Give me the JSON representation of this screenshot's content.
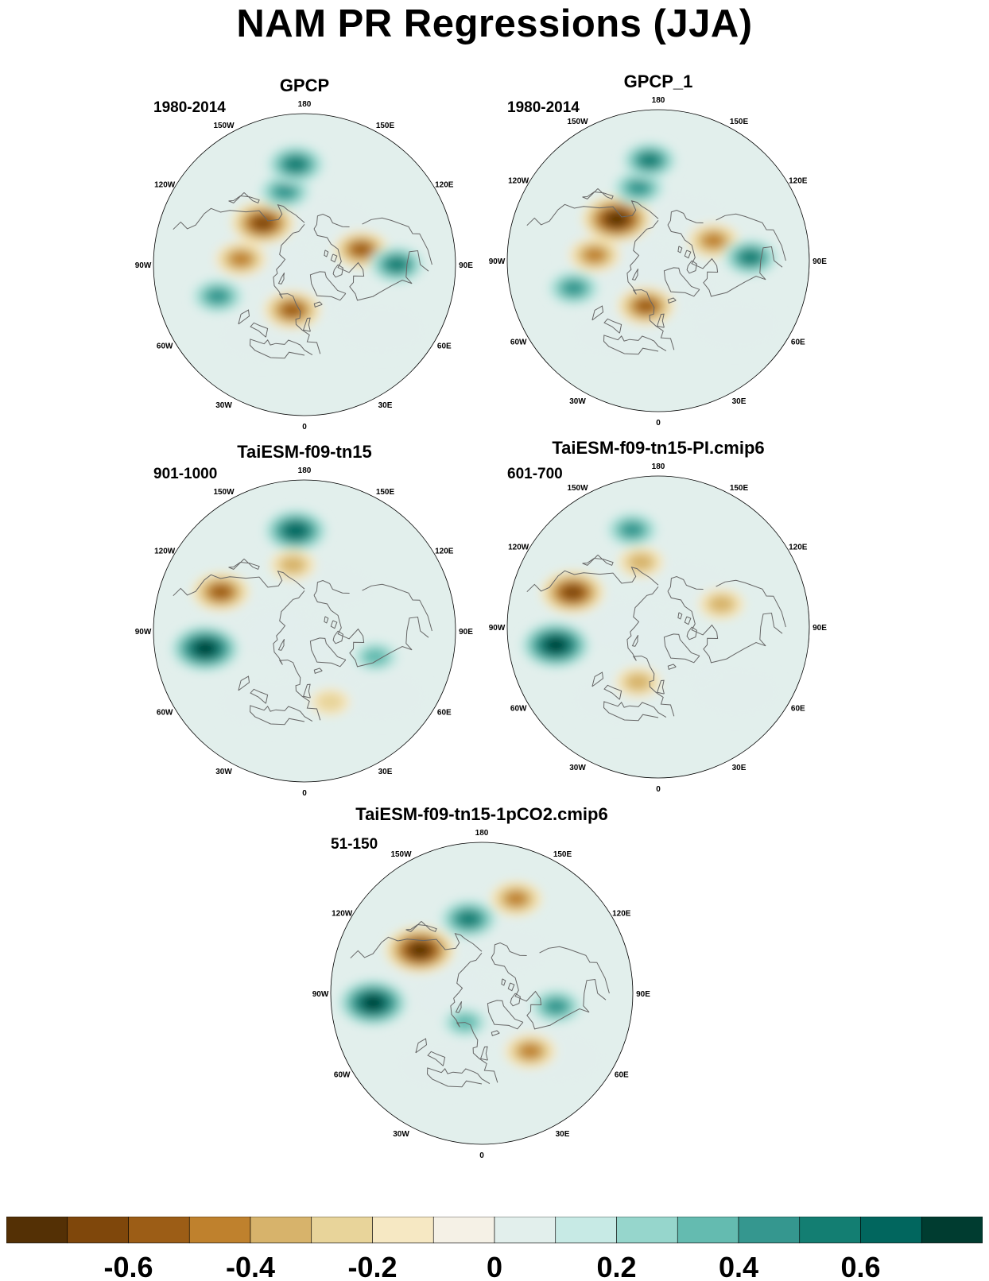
{
  "title": "NAM PR Regressions (JJA)",
  "lon_labels": [
    "180",
    "150E",
    "120E",
    "90E",
    "60E",
    "30E",
    "0",
    "30W",
    "60W",
    "90W",
    "120W",
    "150W"
  ],
  "panels": [
    {
      "title": "GPCP",
      "period": "1980-2014"
    },
    {
      "title": "GPCP_1",
      "period": "1980-2014"
    },
    {
      "title": "TaiESM-f09-tn15",
      "period": "901-1000"
    },
    {
      "title": "TaiESM-f09-tn15-PI.cmip6",
      "period": "601-700"
    },
    {
      "title": "TaiESM-f09-tn15-1pCO2.cmip6",
      "period": "51-150"
    }
  ],
  "colorbar": {
    "colors": [
      "#543005",
      "#7f470b",
      "#9c5d16",
      "#bf812d",
      "#d7b36b",
      "#e8d49a",
      "#f6e8c3",
      "#f5f1e6",
      "#e2efec",
      "#c7eae5",
      "#96d6cc",
      "#64bbb0",
      "#35978f",
      "#137e72",
      "#01665e",
      "#003c30"
    ],
    "ticks": [
      {
        "label": "-0.6",
        "value": -0.6
      },
      {
        "label": "-0.4",
        "value": -0.4
      },
      {
        "label": "-0.2",
        "value": -0.2
      },
      {
        "label": "0",
        "value": 0
      },
      {
        "label": "0.2",
        "value": 0.2
      },
      {
        "label": "0.4",
        "value": 0.4
      },
      {
        "label": "0.6",
        "value": 0.6
      }
    ]
  },
  "chart_data": {
    "type": "heatmap",
    "title": "NAM PR Regressions (JJA)",
    "projection": "north polar stereographic",
    "color_levels": [
      -0.7,
      -0.6,
      -0.5,
      -0.4,
      -0.3,
      -0.2,
      -0.1,
      0,
      0.1,
      0.2,
      0.3,
      0.4,
      0.5,
      0.6,
      0.7
    ],
    "panels": [
      {
        "name": "GPCP",
        "period": "1980-2014",
        "features": [
          {
            "lon": 135,
            "lat": 55,
            "value": -0.6
          },
          {
            "lon": 15,
            "lat": 62,
            "value": -0.5
          },
          {
            "lon": 95,
            "lat": 52,
            "value": -0.4
          },
          {
            "lon": -105,
            "lat": 55,
            "value": -0.45
          },
          {
            "lon": 165,
            "lat": 45,
            "value": 0.4
          },
          {
            "lon": -90,
            "lat": 35,
            "value": 0.45
          },
          {
            "lon": 70,
            "lat": 35,
            "value": 0.4
          },
          {
            "lon": 175,
            "lat": 30,
            "value": 0.5
          }
        ]
      },
      {
        "name": "GPCP_1",
        "period": "1980-2014",
        "features": [
          {
            "lon": 135,
            "lat": 55,
            "value": -0.7
          },
          {
            "lon": 15,
            "lat": 62,
            "value": -0.5
          },
          {
            "lon": 95,
            "lat": 52,
            "value": -0.4
          },
          {
            "lon": -110,
            "lat": 55,
            "value": -0.4
          },
          {
            "lon": 165,
            "lat": 45,
            "value": 0.4
          },
          {
            "lon": -92,
            "lat": 35,
            "value": 0.45
          },
          {
            "lon": 72,
            "lat": 37,
            "value": 0.4
          },
          {
            "lon": 175,
            "lat": 30,
            "value": 0.45
          }
        ]
      },
      {
        "name": "TaiESM-f09-tn15",
        "period": "901-1000",
        "features": [
          {
            "lon": 175,
            "lat": 30,
            "value": 0.6
          },
          {
            "lon": 80,
            "lat": 30,
            "value": 0.7
          },
          {
            "lon": 115,
            "lat": 35,
            "value": -0.5
          },
          {
            "lon": 170,
            "lat": 50,
            "value": -0.3
          },
          {
            "lon": -20,
            "lat": 45,
            "value": -0.2
          },
          {
            "lon": -70,
            "lat": 45,
            "value": 0.3
          }
        ]
      },
      {
        "name": "TaiESM-f09-tn15-PI.cmip6",
        "period": "601-700",
        "features": [
          {
            "lon": 165,
            "lat": 30,
            "value": 0.4
          },
          {
            "lon": 80,
            "lat": 28,
            "value": 0.7
          },
          {
            "lon": 112,
            "lat": 35,
            "value": -0.6
          },
          {
            "lon": 165,
            "lat": 50,
            "value": -0.3
          },
          {
            "lon": -110,
            "lat": 50,
            "value": -0.3
          },
          {
            "lon": 20,
            "lat": 55,
            "value": -0.3
          }
        ]
      },
      {
        "name": "TaiESM-f09-tn15-1pCO2.cmip6",
        "period": "51-150",
        "features": [
          {
            "lon": 85,
            "lat": 25,
            "value": 0.7
          },
          {
            "lon": 170,
            "lat": 45,
            "value": 0.5
          },
          {
            "lon": 125,
            "lat": 45,
            "value": -0.7
          },
          {
            "lon": -160,
            "lat": 30,
            "value": -0.4
          },
          {
            "lon": -40,
            "lat": 45,
            "value": -0.4
          },
          {
            "lon": 30,
            "lat": 70,
            "value": 0.3
          },
          {
            "lon": -80,
            "lat": 45,
            "value": 0.4
          }
        ]
      }
    ]
  }
}
